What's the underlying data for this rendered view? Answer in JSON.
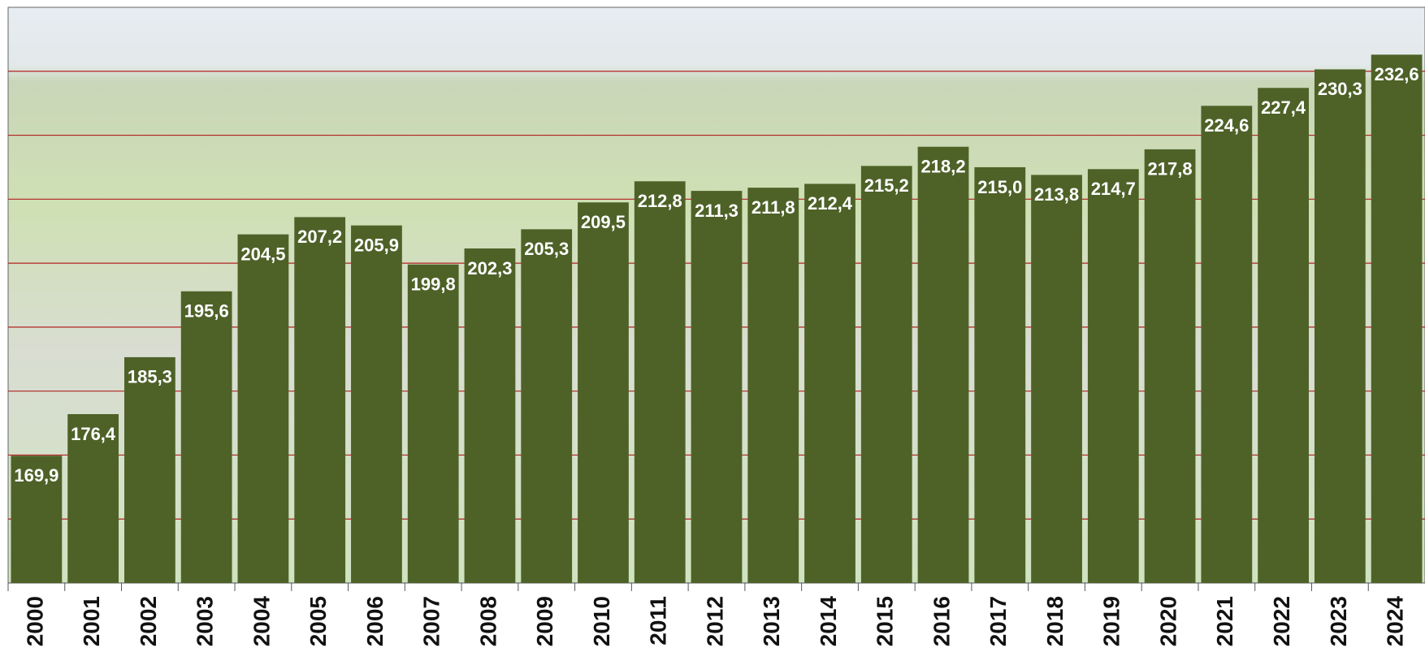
{
  "chart_data": {
    "type": "bar",
    "categories": [
      "2000",
      "2001",
      "2002",
      "2003",
      "2004",
      "2005",
      "2006",
      "2007",
      "2008",
      "2009",
      "2010",
      "2011",
      "2012",
      "2013",
      "2014",
      "2015",
      "2016",
      "2017",
      "2018",
      "2019",
      "2020",
      "2021",
      "2022",
      "2023",
      "2024"
    ],
    "values": [
      169.9,
      176.4,
      185.3,
      195.6,
      204.5,
      207.2,
      205.9,
      199.8,
      202.3,
      205.3,
      209.5,
      212.8,
      211.3,
      211.8,
      212.4,
      215.2,
      218.2,
      215.0,
      213.8,
      214.7,
      217.8,
      224.6,
      227.4,
      230.3,
      232.6
    ],
    "value_labels": [
      "169,9",
      "176,4",
      "185,3",
      "195,6",
      "204,5",
      "207,2",
      "205,9",
      "199,8",
      "202,3",
      "205,3",
      "209,5",
      "212,8",
      "211,3",
      "211,8",
      "212,4",
      "215,2",
      "218,2",
      "215,0",
      "213,8",
      "214,7",
      "217,8",
      "224,6",
      "227,4",
      "230,3",
      "232,6"
    ],
    "color": "#4e6228",
    "ylim": [
      150,
      240
    ],
    "yticks": [
      160,
      170,
      180,
      190,
      200,
      210,
      220,
      230
    ],
    "grid": true,
    "grid_color": "#b22222"
  }
}
